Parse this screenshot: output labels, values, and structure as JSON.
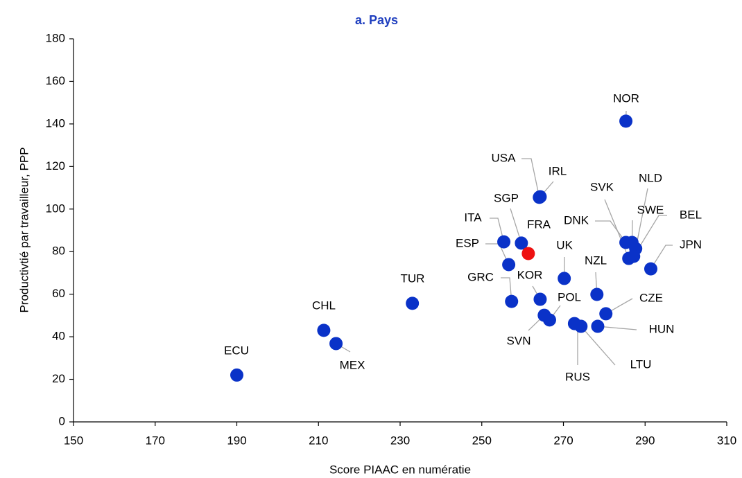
{
  "chart_data": {
    "type": "scatter",
    "title": "a. Pays",
    "x_label": "Score PIAAC en numératie",
    "y_label": "Productivtié par travailleur, PPP",
    "xlim": [
      150,
      310
    ],
    "xticks": [
      150,
      170,
      190,
      210,
      230,
      250,
      270,
      290,
      310
    ],
    "ylim": [
      0,
      180
    ],
    "yticks": [
      0,
      20,
      40,
      60,
      80,
      100,
      120,
      140,
      160,
      180
    ],
    "grid": false,
    "labels": [
      "ECU",
      "CHL",
      "MEX",
      "TUR",
      "ITA",
      "ESP",
      "GRC",
      "SGP",
      "FRA",
      "IRL",
      "USA",
      "KOR",
      "POL",
      "SVN",
      "UK",
      "RUS",
      "LTU",
      "NZL",
      "HUN",
      "CZE",
      "NOR",
      "DNK",
      "SVK",
      "SWE",
      "NLD",
      "BEL",
      "JPN"
    ],
    "x": [
      190,
      211.3,
      214.3,
      233,
      255.4,
      256.6,
      257.3,
      259.7,
      261.4,
      264.3,
      264.1,
      264.3,
      266.6,
      265.3,
      270.2,
      272.7,
      274.3,
      278.2,
      278.4,
      280.4,
      285.3,
      285.3,
      286,
      286.8,
      287.7,
      287.2,
      291.4
    ],
    "y": [
      22,
      43,
      36.8,
      55.7,
      84.6,
      73.9,
      56.6,
      84,
      79.1,
      105.8,
      105.5,
      57.6,
      47.9,
      50.1,
      67.4,
      46.2,
      44.9,
      59.9,
      44.9,
      50.8,
      141.3,
      84.3,
      76.8,
      84.3,
      81.4,
      77.8,
      71.9
    ],
    "colors": [
      "#0a32c8",
      "#0a32c8",
      "#0a32c8",
      "#0a32c8",
      "#0a32c8",
      "#0a32c8",
      "#0a32c8",
      "#0a32c8",
      "#ee1111",
      "#0a32c8",
      "#0a32c8",
      "#0a32c8",
      "#0a32c8",
      "#0a32c8",
      "#0a32c8",
      "#0a32c8",
      "#0a32c8",
      "#0a32c8",
      "#0a32c8",
      "#0a32c8",
      "#0a32c8",
      "#0a32c8",
      "#0a32c8",
      "#0a32c8",
      "#0a32c8",
      "#0a32c8",
      "#0a32c8"
    ]
  }
}
